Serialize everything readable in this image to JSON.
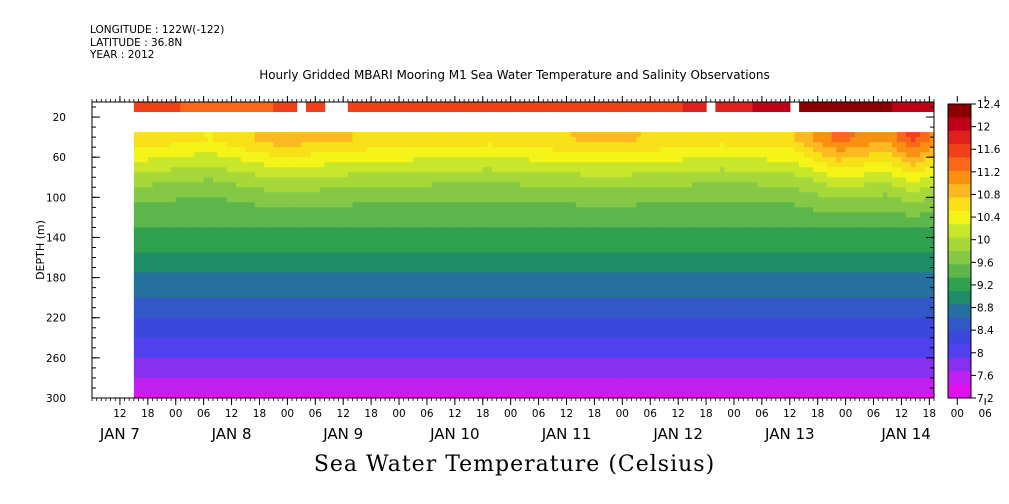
{
  "header": {
    "longitude": "LONGITUDE : 122W(-122)",
    "latitude": "LATITUDE : 36.8N",
    "year": "YEAR : 2012"
  },
  "chart_data": {
    "type": "heatmap",
    "title": "Hourly Gridded MBARI Mooring M1 Sea Water Temperature and Salinity Observations",
    "xlabel": "",
    "ylabel": "DEPTH (m)",
    "colorbar_title": "Sea Water Temperature (Celsius)",
    "y_ticks": [
      20,
      60,
      100,
      140,
      180,
      220,
      260,
      300
    ],
    "ylim": [
      300,
      5
    ],
    "y_inverted": true,
    "hour_ticks": [
      "12",
      "18",
      "00",
      "06",
      "12",
      "18",
      "00",
      "06",
      "12",
      "18",
      "00",
      "06",
      "12",
      "18",
      "00",
      "06",
      "12",
      "18",
      "00",
      "06",
      "12",
      "18",
      "00",
      "06",
      "12",
      "18",
      "00",
      "06",
      "12",
      "18",
      "00",
      "06"
    ],
    "day_labels": [
      "JAN  7",
      "JAN  8",
      "JAN  9",
      "JAN 10",
      "JAN 11",
      "JAN 12",
      "JAN 13",
      "JAN 14"
    ],
    "colorbar_ticks": [
      "12.4",
      "12",
      "11.6",
      "11.2",
      "10.8",
      "10.4",
      "10",
      "9.6",
      "9.2",
      "8.8",
      "8.4",
      "8",
      "7.6",
      "7.2"
    ],
    "colorbar_colors": [
      "#8b0000",
      "#c00018",
      "#e0201e",
      "#f04018",
      "#f86818",
      "#fa9010",
      "#fcb820",
      "#f8e018",
      "#f4f418",
      "#c8e62a",
      "#a6d83a",
      "#84c846",
      "#5cb64c",
      "#2fa04e",
      "#1e8c66",
      "#2670a0",
      "#3258c8",
      "#3c48dc",
      "#5040f0",
      "#8830f0",
      "#c020f0",
      "#e010f0"
    ],
    "x_range_hours": [
      0,
      181
    ],
    "surface_depth_m": 10,
    "surface_gaps_hours": [
      [
        0,
        9
      ],
      [
        44,
        46
      ],
      [
        50,
        55
      ],
      [
        132,
        134
      ],
      [
        150,
        152
      ]
    ],
    "depth_profile": {
      "depths": [
        40,
        60,
        80,
        100,
        120,
        140,
        160,
        180,
        200,
        220,
        240,
        260,
        280,
        300
      ],
      "temps": [
        10.7,
        10.3,
        9.9,
        9.6,
        9.4,
        9.2,
        9.0,
        8.8,
        8.6,
        8.35,
        8.1,
        7.9,
        7.65,
        7.35
      ]
    },
    "surface_temp_series": {
      "hours": [
        9,
        30,
        60,
        90,
        120,
        140,
        155,
        170,
        181
      ],
      "temps": [
        11.5,
        11.4,
        11.6,
        11.5,
        11.6,
        11.9,
        12.3,
        12.2,
        12.0
      ]
    },
    "upper_layer_anomaly": {
      "hours": [
        9,
        25,
        40,
        60,
        85,
        110,
        135,
        150,
        160,
        170,
        176,
        181
      ],
      "anomaly_c": [
        0.0,
        -0.2,
        0.2,
        0.0,
        -0.1,
        0.1,
        -0.1,
        0.0,
        0.6,
        0.3,
        0.8,
        0.4
      ]
    }
  }
}
